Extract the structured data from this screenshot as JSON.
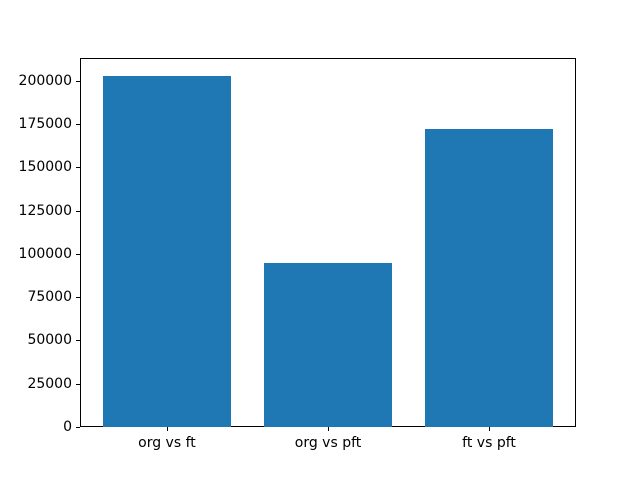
{
  "chart_data": {
    "type": "bar",
    "title": "",
    "xlabel": "",
    "ylabel": "",
    "categories": [
      "org vs ft",
      "org vs pft",
      "ft vs pft"
    ],
    "values": [
      203000,
      94500,
      172000
    ],
    "yticks": [
      0,
      25000,
      50000,
      75000,
      100000,
      125000,
      150000,
      175000,
      200000
    ],
    "ytick_labels": [
      "0",
      "25000",
      "50000",
      "75000",
      "100000",
      "125000",
      "150000",
      "175000",
      "200000"
    ],
    "ylim": [
      0,
      213200
    ],
    "xlim": [
      -0.54,
      2.54
    ],
    "bar_width": 0.8,
    "bar_color": "#1f77b4",
    "grid": false,
    "legend": null,
    "background_color": "#ffffff",
    "frame_color": "#000000"
  }
}
